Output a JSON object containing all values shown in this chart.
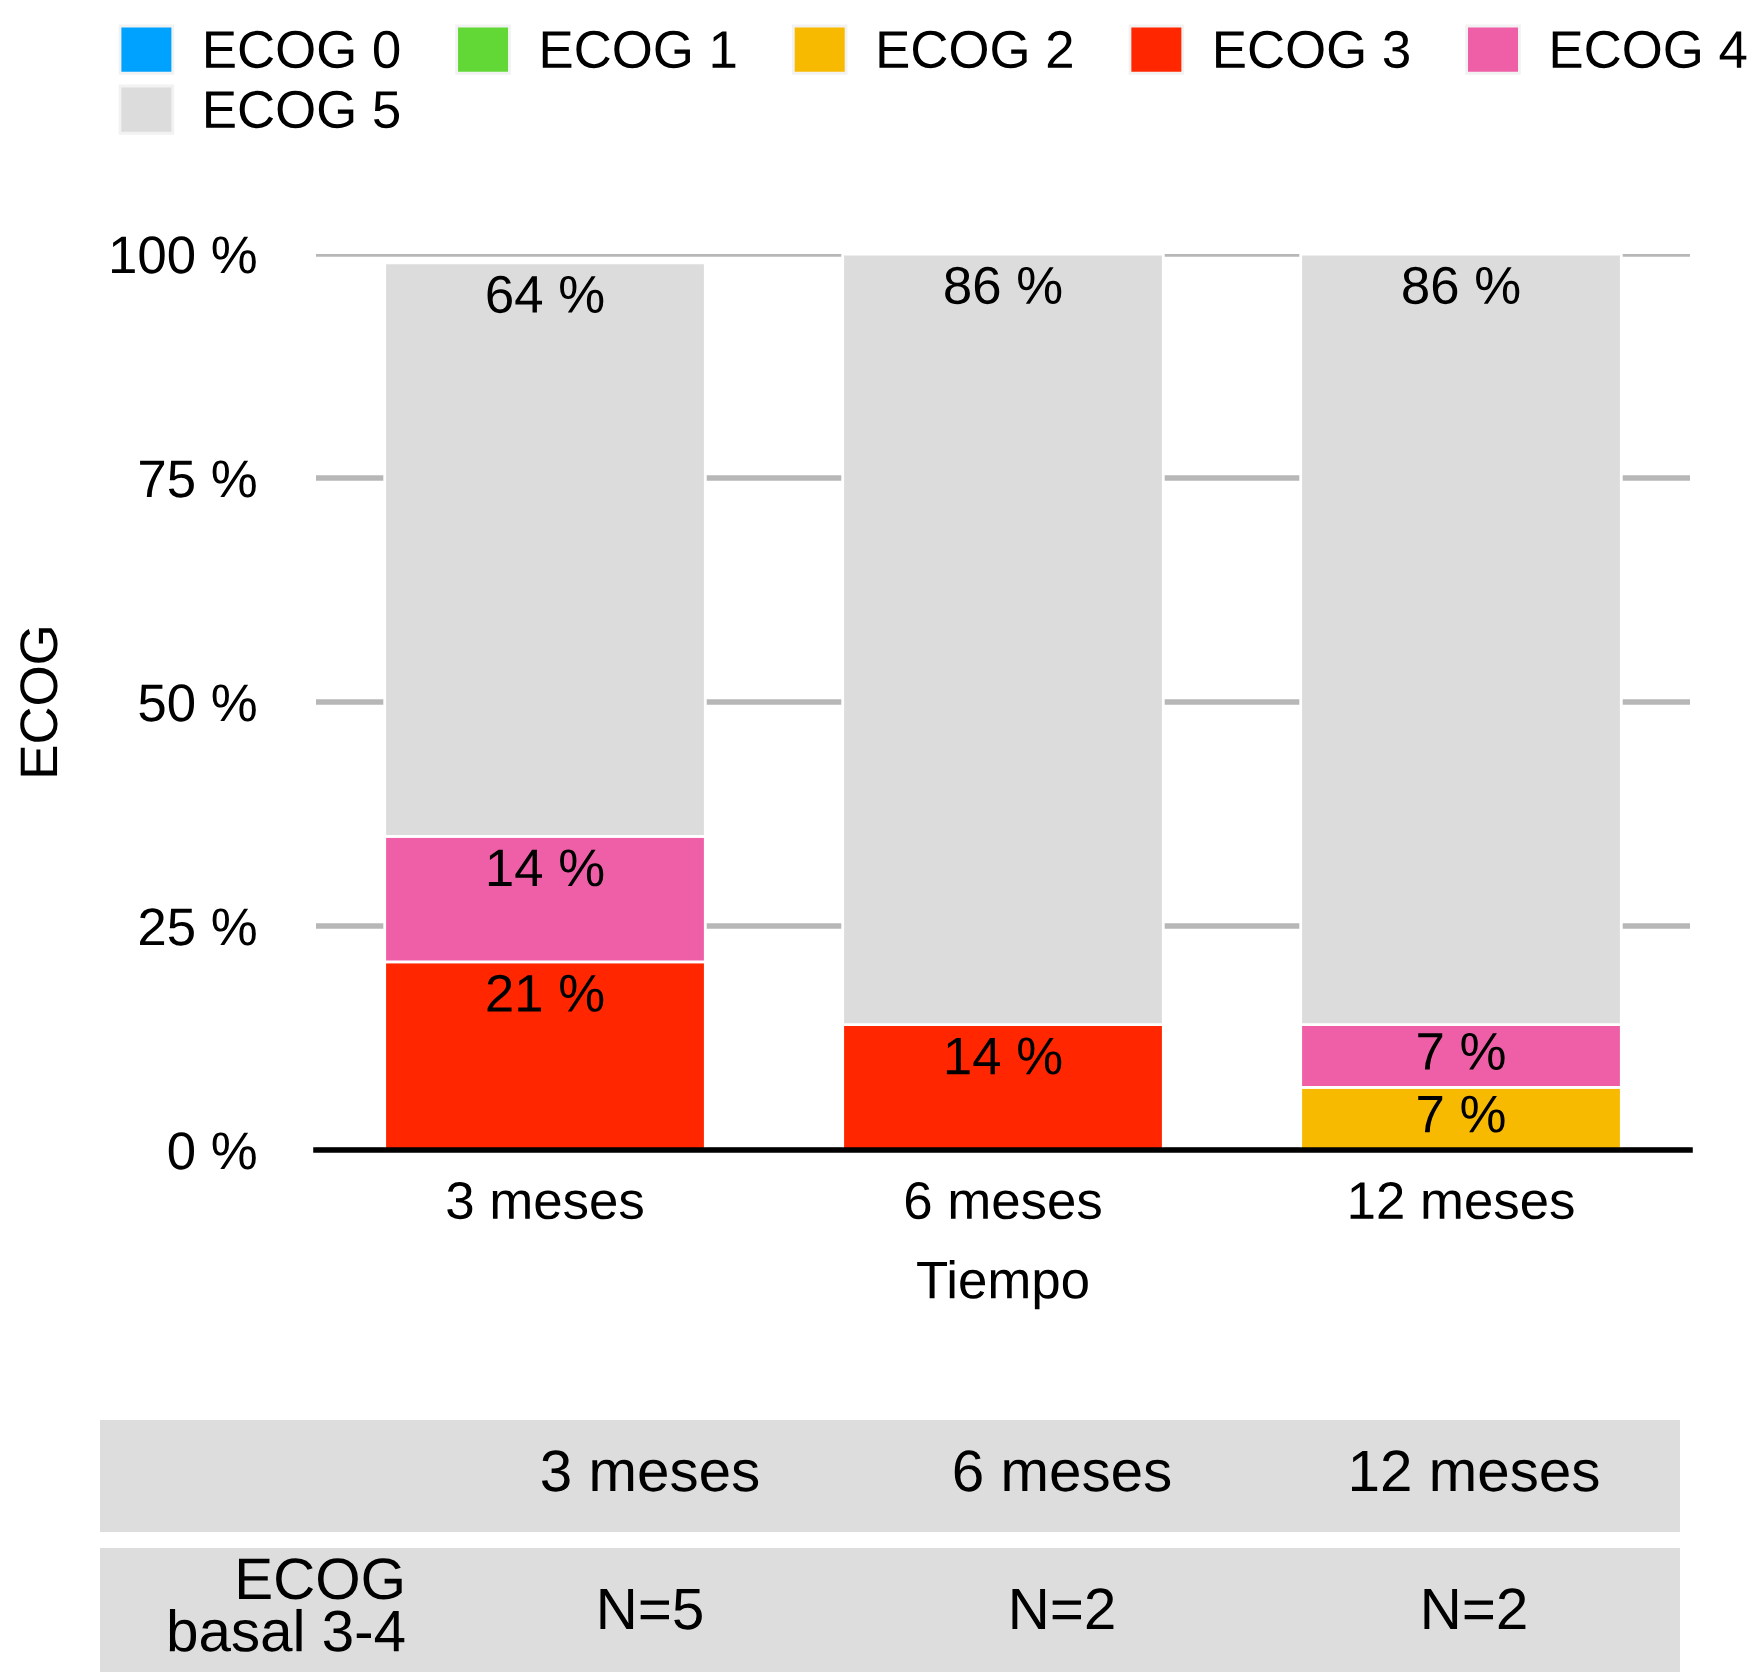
{
  "chart_data": {
    "type": "bar",
    "stacked": true,
    "xlabel": "Tiempo",
    "ylabel": "ECOG",
    "categories": [
      "3 meses",
      "6 meses",
      "12 meses"
    ],
    "series": [
      {
        "name": "ECOG 0",
        "color": "#00a2ff",
        "values": [
          0,
          0,
          0
        ]
      },
      {
        "name": "ECOG 1",
        "color": "#61d836",
        "values": [
          0,
          0,
          0
        ]
      },
      {
        "name": "ECOG 2",
        "color": "#f8ba00",
        "values": [
          0,
          0,
          7
        ],
        "value_labels": [
          null,
          null,
          "7 %"
        ]
      },
      {
        "name": "ECOG 3",
        "color": "#ff2600",
        "values": [
          21,
          14,
          0
        ],
        "value_labels": [
          "21 %",
          "14 %",
          null
        ]
      },
      {
        "name": "ECOG 4",
        "color": "#ef5fa7",
        "values": [
          14,
          0,
          7
        ],
        "value_labels": [
          "14 %",
          null,
          "7 %"
        ]
      },
      {
        "name": "ECOG 5",
        "color": "#dcdcdc",
        "values": [
          64,
          86,
          86
        ],
        "value_labels": [
          "64 %",
          "86 %",
          "86 %"
        ]
      }
    ],
    "ylim": [
      0,
      100
    ],
    "yticks": [
      {
        "value": 0,
        "label": "0 %"
      },
      {
        "value": 25,
        "label": "25 %"
      },
      {
        "value": 50,
        "label": "50 %"
      },
      {
        "value": 75,
        "label": "75 %"
      },
      {
        "value": 100,
        "label": "100 %"
      }
    ],
    "grid": "y",
    "legend": "top left",
    "annotations": [
      "ECOG\nbasal 3-4",
      "N=5",
      "N=2",
      "N=2"
    ]
  }
}
